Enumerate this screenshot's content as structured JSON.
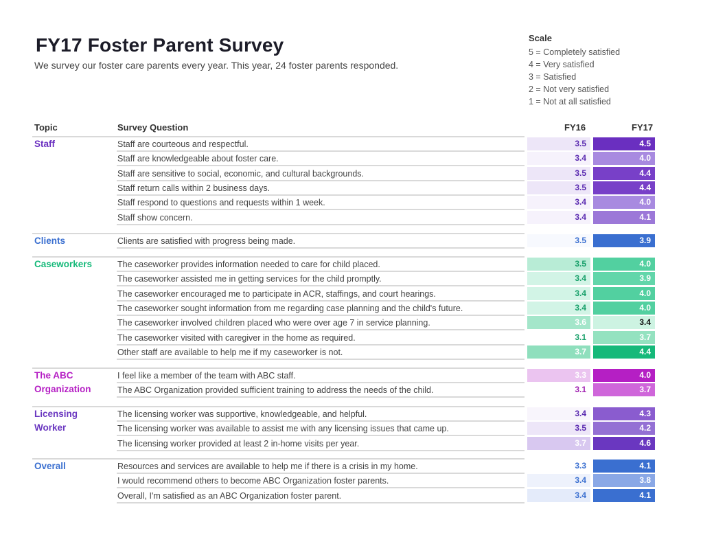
{
  "header": {
    "title": "FY17 Foster Parent Survey",
    "subtitle": "We survey our foster care parents every year. This year, 24 foster parents responded."
  },
  "scale": {
    "title": "Scale",
    "items": [
      "5 = Completely satisfied",
      "4 = Very satisfied",
      "3 = Satisfied",
      "2 = Not very satisfied",
      "1 = Not at all satisfied"
    ]
  },
  "columns": {
    "topic": "Topic",
    "question": "Survey Question",
    "fy16": "FY16",
    "fy17": "FY17"
  },
  "colors": {
    "staff": "#6a2fc0",
    "clients": "#3a6fd0",
    "caseworkers": "#16b97a",
    "abc": "#b51fc4",
    "licensing": "#6a37c0",
    "overall": "#3a6fd0"
  },
  "groups": [
    {
      "topic": "Staff",
      "color": "#6a2fc0",
      "rows": [
        {
          "q": "Staff are courteous and respectful.",
          "fy16": "3.5",
          "fy17": "4.5",
          "c16": "#ede6f8",
          "t16": "#5a2ab0",
          "c17": "#6a2fc0",
          "t17": "#ffffff"
        },
        {
          "q": "Staff are knowledgeable about foster care.",
          "fy16": "3.4",
          "fy17": "4.0",
          "c16": "#f6f2fc",
          "t16": "#5a2ab0",
          "c17": "#a88ae0",
          "t17": "#ffffff"
        },
        {
          "q": "Staff are sensitive to social, economic, and cultural backgrounds.",
          "fy16": "3.5",
          "fy17": "4.4",
          "c16": "#ede6f8",
          "t16": "#5a2ab0",
          "c17": "#7840c8",
          "t17": "#ffffff"
        },
        {
          "q": "Staff return calls within 2 business days.",
          "fy16": "3.5",
          "fy17": "4.4",
          "c16": "#ede6f8",
          "t16": "#5a2ab0",
          "c17": "#7840c8",
          "t17": "#ffffff"
        },
        {
          "q": "Staff respond to questions and requests within 1 week.",
          "fy16": "3.4",
          "fy17": "4.0",
          "c16": "#f6f2fc",
          "t16": "#5a2ab0",
          "c17": "#a88ae0",
          "t17": "#ffffff"
        },
        {
          "q": "Staff show concern.",
          "fy16": "3.4",
          "fy17": "4.1",
          "c16": "#f6f2fc",
          "t16": "#5a2ab0",
          "c17": "#9c78d8",
          "t17": "#ffffff"
        }
      ]
    },
    {
      "topic": "Clients",
      "color": "#3a6fd0",
      "rows": [
        {
          "q": "Clients are satisfied with progress being made.",
          "fy16": "3.5",
          "fy17": "3.9",
          "c16": "#f7f9fe",
          "t16": "#3a6fd0",
          "c17": "#3a6fd0",
          "t17": "#ffffff"
        }
      ]
    },
    {
      "topic": "Caseworkers",
      "color": "#16b97a",
      "rows": [
        {
          "q": "The caseworker provides information needed to care for child placed.",
          "fy16": "3.5",
          "fy17": "4.0",
          "c16": "#b8ecd6",
          "t16": "#18a06a",
          "c17": "#52d0a0",
          "t17": "#ffffff"
        },
        {
          "q": "The caseworker assisted me in getting services for the child promptly.",
          "fy16": "3.4",
          "fy17": "3.9",
          "c16": "#d2f4e6",
          "t16": "#18a06a",
          "c17": "#62d6aa",
          "t17": "#ffffff"
        },
        {
          "q": "The caseworker encouraged me to participate in ACR, staffings, and court hearings.",
          "fy16": "3.4",
          "fy17": "4.0",
          "c16": "#d2f4e6",
          "t16": "#18a06a",
          "c17": "#52d0a0",
          "t17": "#ffffff"
        },
        {
          "q": "The caseworker sought information from me regarding case planning and the child's future.",
          "fy16": "3.4",
          "fy17": "4.0",
          "c16": "#d2f4e6",
          "t16": "#18a06a",
          "c17": "#52d0a0",
          "t17": "#ffffff"
        },
        {
          "q": "The caseworker involved children placed who were over age 7 in service planning.",
          "fy16": "3.6",
          "fy17": "3.4",
          "c16": "#a4e6ca",
          "t16": "#ffffff",
          "c17": "#cdf3e2",
          "t17": "#111111"
        },
        {
          "q": "The caseworker visited with caregiver in the home as required.",
          "fy16": "3.1",
          "fy17": "3.7",
          "c16": "#ffffff",
          "t16": "#18a06a",
          "c17": "#94e2c0",
          "t17": "#ffffff"
        },
        {
          "q": "Other staff are available to help me if my caseworker is not.",
          "fy16": "3.7",
          "fy17": "4.4",
          "c16": "#8fdfbd",
          "t16": "#ffffff",
          "c17": "#16b97a",
          "t17": "#ffffff"
        }
      ]
    },
    {
      "topic": "The ABC Organization",
      "color": "#b51fc4",
      "rows": [
        {
          "q": "I feel like a member of the team with ABC staff.",
          "fy16": "3.3",
          "fy17": "4.0",
          "c16": "#ebc4f0",
          "t16": "#ffffff",
          "c17": "#b51fc4",
          "t17": "#ffffff"
        },
        {
          "q": "The ABC Organization provided sufficient training to address the needs of the child.",
          "fy16": "3.1",
          "fy17": "3.7",
          "c16": "#ffffff",
          "t16": "#a020b0",
          "c17": "#cf66da",
          "t17": "#ffffff"
        }
      ]
    },
    {
      "topic": "Licensing Worker",
      "color": "#6a37c0",
      "rows": [
        {
          "q": "The licensing worker was supportive, knowledgeable, and helpful.",
          "fy16": "3.4",
          "fy17": "4.3",
          "c16": "#f8f5fc",
          "t16": "#5a2ab0",
          "c17": "#8a5ccf",
          "t17": "#ffffff"
        },
        {
          "q": "The licensing worker was available to assist me with any licensing issues that came up.",
          "fy16": "3.5",
          "fy17": "4.2",
          "c16": "#ede6f8",
          "t16": "#5a2ab0",
          "c17": "#9470d4",
          "t17": "#ffffff"
        },
        {
          "q": "The licensing worker provided at least 2 in-home visits per year.",
          "fy16": "3.7",
          "fy17": "4.6",
          "c16": "#d8c8f0",
          "t16": "#ffffff",
          "c17": "#6a37c0",
          "t17": "#ffffff"
        }
      ]
    },
    {
      "topic": "Overall",
      "color": "#3a6fd0",
      "rows": [
        {
          "q": "Resources and services are available to help me if there is a crisis in my home.",
          "fy16": "3.3",
          "fy17": "4.1",
          "c16": "#ffffff",
          "t16": "#3a6fd0",
          "c17": "#3a6fd0",
          "t17": "#ffffff"
        },
        {
          "q": "I would recommend others to become ABC Organization foster parents.",
          "fy16": "3.4",
          "fy17": "3.8",
          "c16": "#eef2fc",
          "t16": "#3a6fd0",
          "c17": "#8aa8e6",
          "t17": "#ffffff"
        },
        {
          "q": "Overall, I'm satisfied as an ABC Organization foster parent.",
          "fy16": "3.4",
          "fy17": "4.1",
          "c16": "#e4ebfa",
          "t16": "#3a6fd0",
          "c17": "#3a6fd0",
          "t17": "#ffffff"
        }
      ]
    }
  ]
}
